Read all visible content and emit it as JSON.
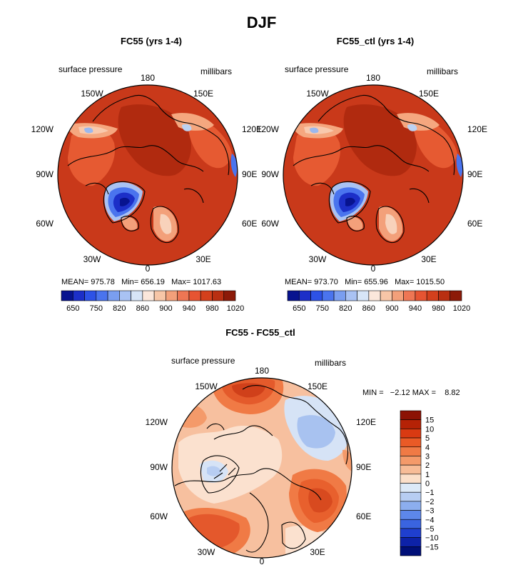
{
  "figure": {
    "title": "DJF"
  },
  "chart_data": [
    {
      "type": "polar-contour-map",
      "title": "FC55 (yrs 1-4)",
      "left_label": "surface pressure",
      "right_label": "millibars",
      "projection": "north polar stereographic",
      "longitude_labels": [
        "180",
        "150W",
        "150E",
        "120W",
        "120E",
        "90W",
        "90E",
        "60W",
        "60E",
        "30W",
        "30E",
        "0"
      ],
      "stats": {
        "mean": "975.78",
        "min": "656.19",
        "max": "1017.63"
      },
      "stats_text": "MEAN= 975.78   Min= 656.19   Max= 1017.63",
      "colorbar": {
        "orientation": "horizontal",
        "tick_labels": [
          "650",
          "750",
          "820",
          "860",
          "900",
          "940",
          "980",
          "1020"
        ],
        "colors": [
          "#07138f",
          "#1c2fc8",
          "#2d52e6",
          "#4a74ee",
          "#7a9ef0",
          "#a9c2f3",
          "#d7e5f7",
          "#fbe7db",
          "#f7c6a7",
          "#f3a07a",
          "#ee7654",
          "#e65432",
          "#d4401d",
          "#b92f12",
          "#8c1a08"
        ]
      }
    },
    {
      "type": "polar-contour-map",
      "title": "FC55_ctl (yrs 1-4)",
      "left_label": "surface pressure",
      "right_label": "millibars",
      "projection": "north polar stereographic",
      "longitude_labels": [
        "180",
        "150W",
        "150E",
        "120W",
        "120E",
        "90W",
        "90E",
        "60W",
        "60E",
        "30W",
        "30E",
        "0"
      ],
      "stats": {
        "mean": "973.70",
        "min": "655.96",
        "max": "1015.50"
      },
      "stats_text": "MEAN= 973.70   Min= 655.96   Max= 1015.50",
      "colorbar": {
        "orientation": "horizontal",
        "tick_labels": [
          "650",
          "750",
          "820",
          "860",
          "900",
          "940",
          "980",
          "1020"
        ],
        "colors": [
          "#07138f",
          "#1c2fc8",
          "#2d52e6",
          "#4a74ee",
          "#7a9ef0",
          "#a9c2f3",
          "#d7e5f7",
          "#fbe7db",
          "#f7c6a7",
          "#f3a07a",
          "#ee7654",
          "#e65432",
          "#d4401d",
          "#b92f12",
          "#8c1a08"
        ]
      }
    },
    {
      "type": "polar-contour-map",
      "title": "FC55 - FC55_ctl",
      "left_label": "surface pressure",
      "right_label": "millibars",
      "projection": "north polar stereographic",
      "longitude_labels": [
        "180",
        "150W",
        "150E",
        "120W",
        "120E",
        "90W",
        "90E",
        "60W",
        "60E",
        "30W",
        "30E",
        "0"
      ],
      "stats": {
        "min": "-2.12",
        "max": "8.82"
      },
      "stats_text": "MIN =   −2.12 MAX =    8.82",
      "colorbar": {
        "orientation": "vertical",
        "tick_labels": [
          "15",
          "10",
          "5",
          "4",
          "3",
          "2",
          "1",
          "0",
          "−1",
          "−2",
          "−3",
          "−4",
          "−5",
          "−10",
          "−15"
        ],
        "colors": [
          "#8c1204",
          "#b52206",
          "#d93a12",
          "#ea5a26",
          "#f07a45",
          "#f49a6a",
          "#f7bc97",
          "#fbdfc9",
          "#dce9f7",
          "#b7cdf2",
          "#8caeee",
          "#5d87ea",
          "#3a64e0",
          "#1f3fcf",
          "#0d22a8",
          "#000f78"
        ]
      }
    }
  ]
}
